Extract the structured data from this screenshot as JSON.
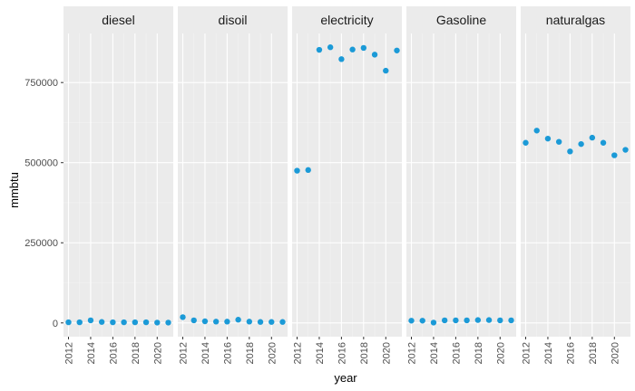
{
  "chart_data": {
    "type": "scatter",
    "facets": [
      "diesel",
      "disoil",
      "electricity",
      "Gasoline",
      "naturalgas"
    ],
    "x": [
      2012,
      2013,
      2014,
      2015,
      2016,
      2017,
      2018,
      2019,
      2020,
      2021
    ],
    "series": [
      {
        "facet": "diesel",
        "values": [
          2000,
          2000,
          8000,
          3000,
          2000,
          2000,
          2000,
          2000,
          1000,
          1000
        ]
      },
      {
        "facet": "disoil",
        "values": [
          18000,
          8000,
          5000,
          4000,
          4000,
          10000,
          4000,
          3000,
          3000,
          3000
        ]
      },
      {
        "facet": "electricity",
        "values": [
          475000,
          477000,
          852000,
          860000,
          823000,
          853000,
          858000,
          837000,
          787000,
          850000
        ]
      },
      {
        "facet": "Gasoline",
        "values": [
          7000,
          7000,
          1000,
          8000,
          8000,
          8000,
          9000,
          9000,
          8000,
          8000
        ]
      },
      {
        "facet": "naturalgas",
        "values": [
          562000,
          600000,
          575000,
          565000,
          535000,
          558000,
          578000,
          562000,
          523000,
          540000
        ]
      }
    ],
    "xlabel": "year",
    "ylabel": "mmbtu",
    "x_ticks": [
      "2012",
      "2014",
      "2016",
      "2018",
      "2020"
    ],
    "y_ticks": [
      "0",
      "250000",
      "500000",
      "750000"
    ],
    "xlim": [
      2011.55,
      2021.45
    ],
    "ylim": [
      -43000,
      903000
    ],
    "grid": true,
    "colors": {
      "point": "#1b9ad7",
      "panel": "#ebebeb",
      "strip": "#ebebeb",
      "grid_major": "#ffffff",
      "grid_minor": "#f3f3f3"
    }
  }
}
